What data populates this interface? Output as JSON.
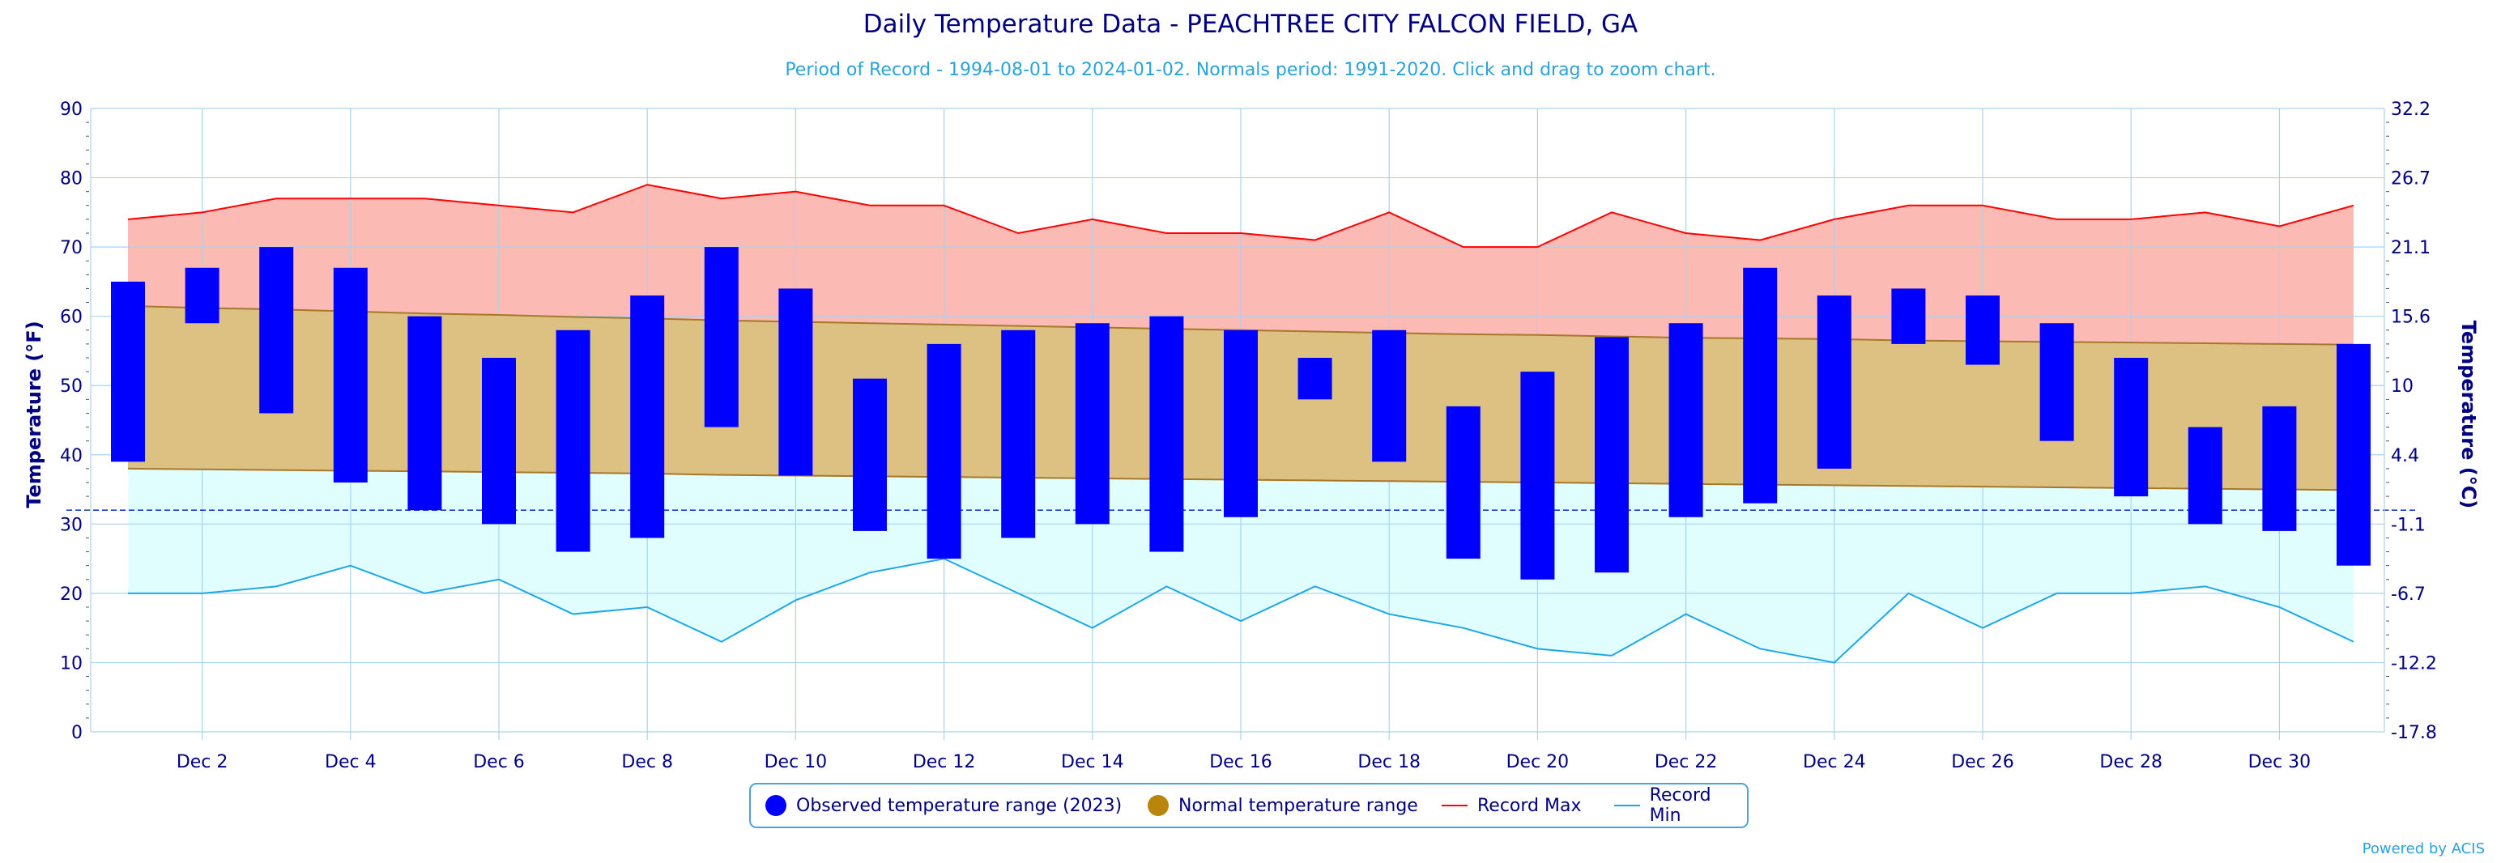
{
  "chart_data": {
    "type": "bar",
    "title": "Daily Temperature Data - PEACHTREE CITY FALCON FIELD, GA",
    "subtitle": "Period of Record - 1994-08-01 to 2024-01-02. Normals period: 1991-2020. Click and drag to zoom chart.",
    "ylabel": "Temperature (°F)",
    "ylabel_right": "Temperature (°C)",
    "ylim": [
      0,
      90
    ],
    "yticks": [
      0,
      10,
      20,
      30,
      40,
      50,
      60,
      70,
      80,
      90
    ],
    "yticks_right": [
      "-17.8",
      "-12.2",
      "-6.7",
      "-1.1",
      "4.4",
      "10",
      "15.6",
      "21.1",
      "26.7",
      "32.2"
    ],
    "freezing_line": 32,
    "x_tick_days": [
      2,
      4,
      6,
      8,
      10,
      12,
      14,
      16,
      18,
      20,
      22,
      24,
      26,
      28,
      30
    ],
    "x_tick_labels": [
      "Dec 2",
      "Dec 4",
      "Dec 6",
      "Dec 8",
      "Dec 10",
      "Dec 12",
      "Dec 14",
      "Dec 16",
      "Dec 18",
      "Dec 20",
      "Dec 22",
      "Dec 24",
      "Dec 26",
      "Dec 28",
      "Dec 30"
    ],
    "days": [
      1,
      2,
      3,
      4,
      5,
      6,
      7,
      8,
      9,
      10,
      11,
      12,
      13,
      14,
      15,
      16,
      17,
      18,
      19,
      20,
      21,
      22,
      23,
      24,
      25,
      26,
      27,
      28,
      29,
      30,
      31
    ],
    "series": [
      {
        "name": "Observed temperature range (2023)",
        "color": "#0000ff",
        "high": [
          65,
          67,
          70,
          67,
          60,
          54,
          58,
          63,
          70,
          64,
          51,
          56,
          58,
          59,
          60,
          58,
          54,
          58,
          47,
          52,
          57,
          59,
          67,
          63,
          64,
          63,
          59,
          54,
          44,
          47,
          56
        ],
        "low": [
          39,
          59,
          46,
          36,
          32,
          30,
          26,
          28,
          44,
          37,
          29,
          25,
          28,
          30,
          26,
          31,
          48,
          39,
          25,
          22,
          23,
          31,
          33,
          38,
          56,
          53,
          42,
          34,
          30,
          29,
          24
        ]
      },
      {
        "name": "Normal temperature range",
        "color": "#b8860b",
        "high": [
          61.5,
          61.2,
          61.0,
          60.7,
          60.4,
          60.2,
          59.9,
          59.7,
          59.4,
          59.2,
          59.0,
          58.8,
          58.6,
          58.4,
          58.2,
          58.0,
          57.8,
          57.6,
          57.4,
          57.3,
          57.1,
          56.9,
          56.8,
          56.7,
          56.5,
          56.4,
          56.3,
          56.2,
          56.1,
          56.0,
          55.9
        ],
        "low": [
          38.0,
          37.9,
          37.8,
          37.7,
          37.6,
          37.5,
          37.4,
          37.3,
          37.1,
          37.0,
          36.9,
          36.8,
          36.7,
          36.6,
          36.5,
          36.4,
          36.3,
          36.2,
          36.1,
          36.0,
          35.9,
          35.8,
          35.7,
          35.6,
          35.5,
          35.4,
          35.3,
          35.2,
          35.1,
          35.0,
          34.9
        ]
      },
      {
        "name": "Record Max",
        "color": "#ff0000",
        "values": [
          74,
          75,
          77,
          77,
          77,
          76,
          75,
          79,
          77,
          78,
          76,
          76,
          72,
          74,
          72,
          72,
          71,
          75,
          70,
          70,
          75,
          72,
          71,
          74,
          76,
          76,
          74,
          74,
          75,
          73,
          76
        ]
      },
      {
        "name": "Record Min",
        "color": "#1ea7e8",
        "values": [
          20,
          20,
          21,
          24,
          20,
          22,
          17,
          18,
          13,
          19,
          23,
          25,
          20,
          15,
          21,
          16,
          21,
          17,
          15,
          12,
          11,
          17,
          12,
          10,
          20,
          15,
          20,
          20,
          21,
          18,
          13
        ]
      }
    ],
    "grid": true,
    "legend_position": "bottom-center"
  },
  "credit": "Powered by ACIS"
}
